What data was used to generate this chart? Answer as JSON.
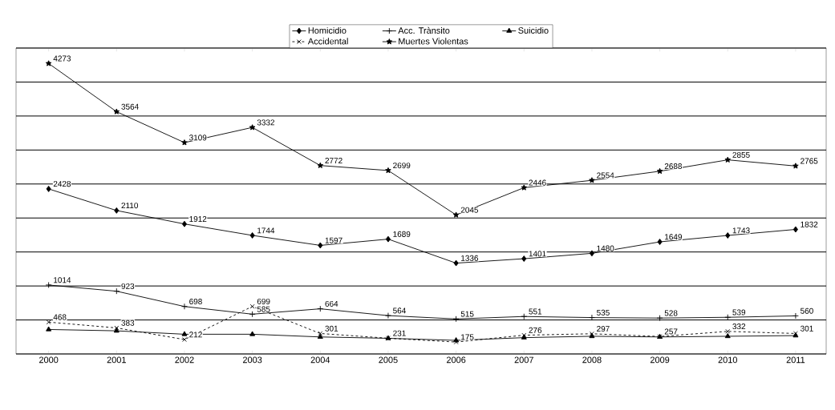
{
  "chart_data": {
    "type": "line",
    "categories": [
      "2000",
      "2001",
      "2002",
      "2003",
      "2004",
      "2005",
      "2006",
      "2007",
      "2008",
      "2009",
      "2010",
      "2011"
    ],
    "series": [
      {
        "name": "Homicidio",
        "color": "#000000",
        "marker": "diamond",
        "values": [
          2428,
          2110,
          1912,
          1744,
          1597,
          1689,
          1336,
          1401,
          1480,
          1649,
          1743,
          1832
        ],
        "value_labels": [
          "2428",
          "2110",
          "1912",
          "1744",
          "1597",
          "1689",
          "1336",
          "1401",
          "1480",
          "1649",
          "1743",
          "1832"
        ]
      },
      {
        "name": "Acc. Trànsito",
        "color": "#000000",
        "marker": "cross",
        "values": [
          1014,
          923,
          698,
          585,
          664,
          564,
          515,
          551,
          535,
          528,
          539,
          560
        ],
        "value_labels": [
          "1014",
          "923",
          "698",
          "585",
          "664",
          "564",
          "515",
          "551",
          "535",
          "528",
          "539",
          "560"
        ]
      },
      {
        "name": "Suicidio",
        "color": "#000000",
        "marker": "triangle",
        "values": [
          360,
          340,
          290,
          290,
          250,
          230,
          200,
          240,
          260,
          250,
          260,
          270
        ]
      },
      {
        "name": "Accidental",
        "color": "#000000",
        "marker": "x",
        "line_style": "dashed",
        "values": [
          468,
          383,
          212,
          699,
          301,
          231,
          175,
          276,
          297,
          257,
          332,
          301
        ],
        "value_labels": [
          "468",
          "383",
          "212",
          "699",
          "301",
          "231",
          "175",
          "276",
          "297",
          "257",
          "332",
          "301"
        ]
      },
      {
        "name": "Muertes Violentas",
        "color": "#000000",
        "marker": "star",
        "values": [
          4273,
          3564,
          3109,
          3332,
          2772,
          2699,
          2045,
          2446,
          2554,
          2688,
          2855,
          2765
        ],
        "value_labels": [
          "4273",
          "3564",
          "3109",
          "3332",
          "2772",
          "2699",
          "2045",
          "2446",
          "2554",
          "2688",
          "2855",
          "2765"
        ]
      }
    ],
    "ylim": [
      0,
      4500
    ],
    "yticks": [
      {
        "value": 0,
        "label": null
      },
      {
        "value": 500,
        "label": null
      },
      {
        "value": 1000,
        "label": null
      },
      {
        "value": 1500,
        "label": null
      },
      {
        "value": 2000,
        "label": null
      },
      {
        "value": 2500,
        "label": null
      },
      {
        "value": 3000,
        "label": null
      },
      {
        "value": 3500,
        "label": null
      },
      {
        "value": 4000,
        "label": null
      },
      {
        "value": 4500,
        "label": null
      }
    ],
    "grid": "y",
    "legend": "top",
    "tick_labels": "x",
    "line_style": "solid"
  }
}
